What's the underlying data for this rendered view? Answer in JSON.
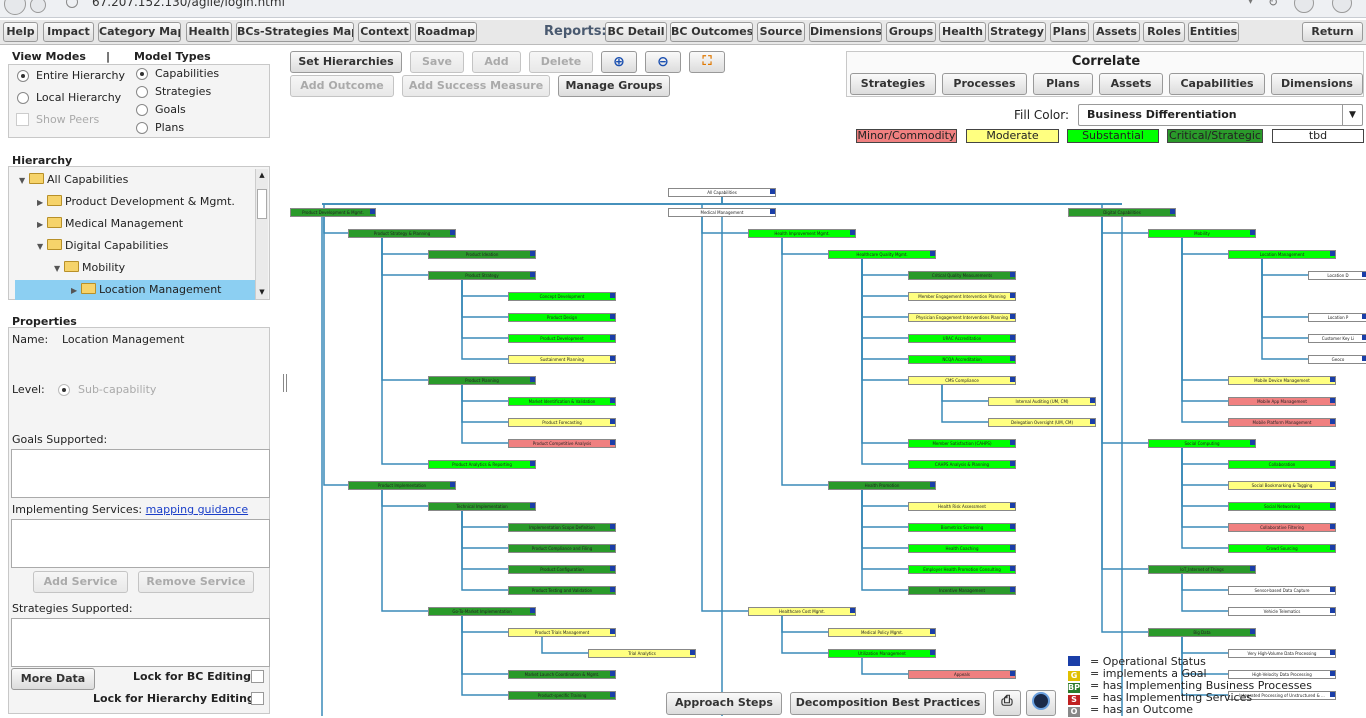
{
  "browser": {
    "url": "67.207.152.130/agile/login.html"
  },
  "menu": {
    "left": [
      "Help",
      "Impact",
      "Category Map",
      "Health",
      "BCs-Strategies Map",
      "Context",
      "Roadmap"
    ],
    "reports_label": "Reports:",
    "reports": [
      "BC Detail",
      "BC Outcomes",
      "Source",
      "Dimensions",
      "Groups",
      "Health",
      "Strategy",
      "Plans",
      "Assets",
      "Roles",
      "Entities"
    ],
    "return": "Return"
  },
  "view_modes": {
    "title": "View Modes",
    "separator": "|",
    "options": [
      "Entire Hierarchy",
      "Local Hierarchy"
    ],
    "show_peers": "Show Peers"
  },
  "model_types": {
    "title": "Model Types",
    "options": [
      "Capabilities",
      "Strategies",
      "Goals",
      "Plans"
    ]
  },
  "hierarchy": {
    "title": "Hierarchy",
    "items": [
      "All Capabilities",
      "Product Development & Mgmt.",
      "Medical Management",
      "Digital Capabilities",
      "Mobility",
      "Location Management"
    ]
  },
  "properties": {
    "title": "Properties",
    "name_label": "Name:",
    "name_value": "Location Management",
    "level_label": "Level:",
    "level_value": "Sub-capability",
    "goals_label": "Goals Supported:",
    "impl_label": "Implementing Services:",
    "impl_link": "mapping guidance",
    "add_service": "Add Service",
    "remove_service": "Remove Service",
    "strategies_label": "Strategies Supported:",
    "more_data": "More Data",
    "lock_bc": "Lock for BC Editing",
    "lock_hier": "Lock for Hierarchy Editing"
  },
  "toolbar": {
    "set_hierarchies": "Set Hierarchies",
    "save": "Save",
    "add": "Add",
    "delete": "Delete",
    "add_outcome": "Add Outcome",
    "add_success": "Add Success Measure",
    "manage_groups": "Manage Groups"
  },
  "correlate": {
    "title": "Correlate",
    "buttons": [
      "Strategies",
      "Processes",
      "Plans",
      "Assets",
      "Capabilities",
      "Dimensions"
    ]
  },
  "fill": {
    "label": "Fill Color:",
    "value": "Business Differentiation",
    "legend": [
      {
        "label": "Minor/Commodity",
        "color": "#f08080"
      },
      {
        "label": "Moderate",
        "color": "#ffff80"
      },
      {
        "label": "Substantial",
        "color": "#00ff00"
      },
      {
        "label": "Critical/Strategic",
        "color": "#2a9a2a"
      },
      {
        "label": "tbd",
        "color": "#ffffff"
      }
    ]
  },
  "key": [
    {
      "icon": "",
      "text": "= Operational Status",
      "color": "#1a3ea8"
    },
    {
      "icon": "G",
      "text": "= implements a Goal",
      "color": "#e0c000"
    },
    {
      "icon": "BP",
      "text": "= has Implementing Business Processes",
      "color": "#2a7a2a"
    },
    {
      "icon": "S",
      "text": "= has Implementing Services",
      "color": "#c02020"
    },
    {
      "icon": "O",
      "text": "= has an Outcome",
      "color": "#888888"
    }
  ],
  "bottom": {
    "approach": "Approach Steps",
    "decomposition": "Decomposition Best Practices"
  },
  "diagram": {
    "nodes": [
      {
        "t": "All Capabilities",
        "c": "#fff"
      },
      {
        "t": "Product Development & Mgmt.",
        "c": "#2a9a2a"
      },
      {
        "t": "Medical Management",
        "c": "#fff"
      },
      {
        "t": "Digital Capabilities",
        "c": "#2a9a2a"
      },
      {
        "t": "Product Strategy & Planning",
        "c": "#2a9a2a"
      },
      {
        "t": "Product Ideation",
        "c": "#2a9a2a"
      },
      {
        "t": "Product Strategy",
        "c": "#2a9a2a"
      },
      {
        "t": "Concept Development",
        "c": "#00ff00"
      },
      {
        "t": "Product Design",
        "c": "#00ff00"
      },
      {
        "t": "Product Development",
        "c": "#00ff00"
      },
      {
        "t": "Sustainment Planning",
        "c": "#ffff80"
      },
      {
        "t": "Product Planning",
        "c": "#2a9a2a"
      },
      {
        "t": "Market Identification & Validation",
        "c": "#00ff00"
      },
      {
        "t": "Product Forecasting",
        "c": "#ffff80"
      },
      {
        "t": "Product Competitive Analysis",
        "c": "#f08080"
      },
      {
        "t": "Product Analytics & Reporting",
        "c": "#00ff00"
      },
      {
        "t": "Product Implementation",
        "c": "#2a9a2a"
      },
      {
        "t": "Technical Implementation",
        "c": "#2a9a2a"
      },
      {
        "t": "Implementation Scope Definition",
        "c": "#2a9a2a"
      },
      {
        "t": "Product Compliance and Filing",
        "c": "#2a9a2a"
      },
      {
        "t": "Product Configuration",
        "c": "#2a9a2a"
      },
      {
        "t": "Product Testing and Validation",
        "c": "#2a9a2a"
      },
      {
        "t": "Go-To-Market Implementation",
        "c": "#2a9a2a"
      },
      {
        "t": "Product Trials Management",
        "c": "#ffff80"
      },
      {
        "t": "Trial Analytics",
        "c": "#ffff80"
      },
      {
        "t": "Market Launch Coordination & Mgmt.",
        "c": "#2a9a2a"
      },
      {
        "t": "Product-specific Training",
        "c": "#2a9a2a"
      },
      {
        "t": "Health Improvement Mgmt.",
        "c": "#00ff00"
      },
      {
        "t": "Healthcare Quality Mgmt.",
        "c": "#00ff00"
      },
      {
        "t": "Critical Quality Measurements",
        "c": "#2a9a2a"
      },
      {
        "t": "Member Engagement Intervention Planning",
        "c": "#ffff80"
      },
      {
        "t": "Physician Engagement Interventions Planning",
        "c": "#ffff80"
      },
      {
        "t": "URAC Accreditation",
        "c": "#00ff00"
      },
      {
        "t": "NCQA Accreditation",
        "c": "#00ff00"
      },
      {
        "t": "CMS Compliance",
        "c": "#ffff80"
      },
      {
        "t": "Internal Auditing (UM, CM)",
        "c": "#ffff80"
      },
      {
        "t": "Delegation Oversight (UM, CM)",
        "c": "#ffff80"
      },
      {
        "t": "Member Satisfaction (CAHPS)",
        "c": "#00ff00"
      },
      {
        "t": "CAHPS Analysis & Planning",
        "c": "#00ff00"
      },
      {
        "t": "Health Promotion",
        "c": "#2a9a2a"
      },
      {
        "t": "Health Risk Assessment",
        "c": "#ffff80"
      },
      {
        "t": "Biometrics Screening",
        "c": "#00ff00"
      },
      {
        "t": "Health Coaching",
        "c": "#00ff00"
      },
      {
        "t": "Employer Health Promotion Consulting",
        "c": "#00ff00"
      },
      {
        "t": "Incentive Management",
        "c": "#2a9a2a"
      },
      {
        "t": "Healthcare Cost Mgmt.",
        "c": "#ffff80"
      },
      {
        "t": "Medical Policy Mgmt.",
        "c": "#ffff80"
      },
      {
        "t": "Utilization Management",
        "c": "#00ff00"
      },
      {
        "t": "Appeals",
        "c": "#f08080"
      },
      {
        "t": "Mobility",
        "c": "#00ff00"
      },
      {
        "t": "Location Management",
        "c": "#00ff00"
      },
      {
        "t": "Location D",
        "c": "#fff"
      },
      {
        "t": "Location P",
        "c": "#fff"
      },
      {
        "t": "Customer Key Li",
        "c": "#fff"
      },
      {
        "t": "Geoco",
        "c": "#fff"
      },
      {
        "t": "Mobile Device Management",
        "c": "#ffff80"
      },
      {
        "t": "Mobile App Management",
        "c": "#f08080"
      },
      {
        "t": "Mobile Platform Management",
        "c": "#f08080"
      },
      {
        "t": "Social Computing",
        "c": "#00ff00"
      },
      {
        "t": "Collaboration",
        "c": "#00ff00"
      },
      {
        "t": "Social Bookmarking & Tagging",
        "c": "#ffff80"
      },
      {
        "t": "Social Networking",
        "c": "#00ff00"
      },
      {
        "t": "Collaborative Filtering",
        "c": "#f08080"
      },
      {
        "t": "Crowd Sourcing",
        "c": "#00ff00"
      },
      {
        "t": "IoT_Internet of Things",
        "c": "#2a9a2a"
      },
      {
        "t": "Sensor-based Data Capture",
        "c": "#fff"
      },
      {
        "t": "Vehicle Telematics",
        "c": "#fff"
      },
      {
        "t": "Big Data",
        "c": "#2a9a2a"
      },
      {
        "t": "Very High-Volume Data Processing",
        "c": "#fff"
      },
      {
        "t": "High-Velocity Data Processing",
        "c": "#fff"
      },
      {
        "t": "Integrated Processing of Unstructured & ...",
        "c": "#fff"
      }
    ]
  }
}
